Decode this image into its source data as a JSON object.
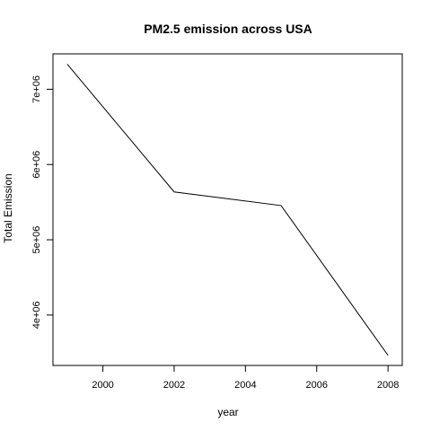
{
  "chart_data": {
    "type": "line",
    "title": "PM2.5 emission across USA",
    "xlabel": "year",
    "ylabel": "Total Emission",
    "x": [
      1999,
      2002,
      2005,
      2008
    ],
    "series": [
      {
        "values": [
          7332967,
          5635780,
          5454703,
          3464206
        ]
      }
    ],
    "xlim": [
      1998.6,
      2008.4
    ],
    "ylim": [
      3330000,
      7470000
    ],
    "x_ticks": [
      {
        "value": 2000,
        "label": "2000"
      },
      {
        "value": 2002,
        "label": "2002"
      },
      {
        "value": 2004,
        "label": "2004"
      },
      {
        "value": 2006,
        "label": "2006"
      },
      {
        "value": 2008,
        "label": "2008"
      }
    ],
    "y_ticks": [
      {
        "value": 4000000,
        "label": "4e+06"
      },
      {
        "value": 5000000,
        "label": "5e+06"
      },
      {
        "value": 6000000,
        "label": "6e+06"
      },
      {
        "value": 7000000,
        "label": "7e+06"
      }
    ],
    "line_color": "#000000",
    "grid": false,
    "legend": "none"
  }
}
